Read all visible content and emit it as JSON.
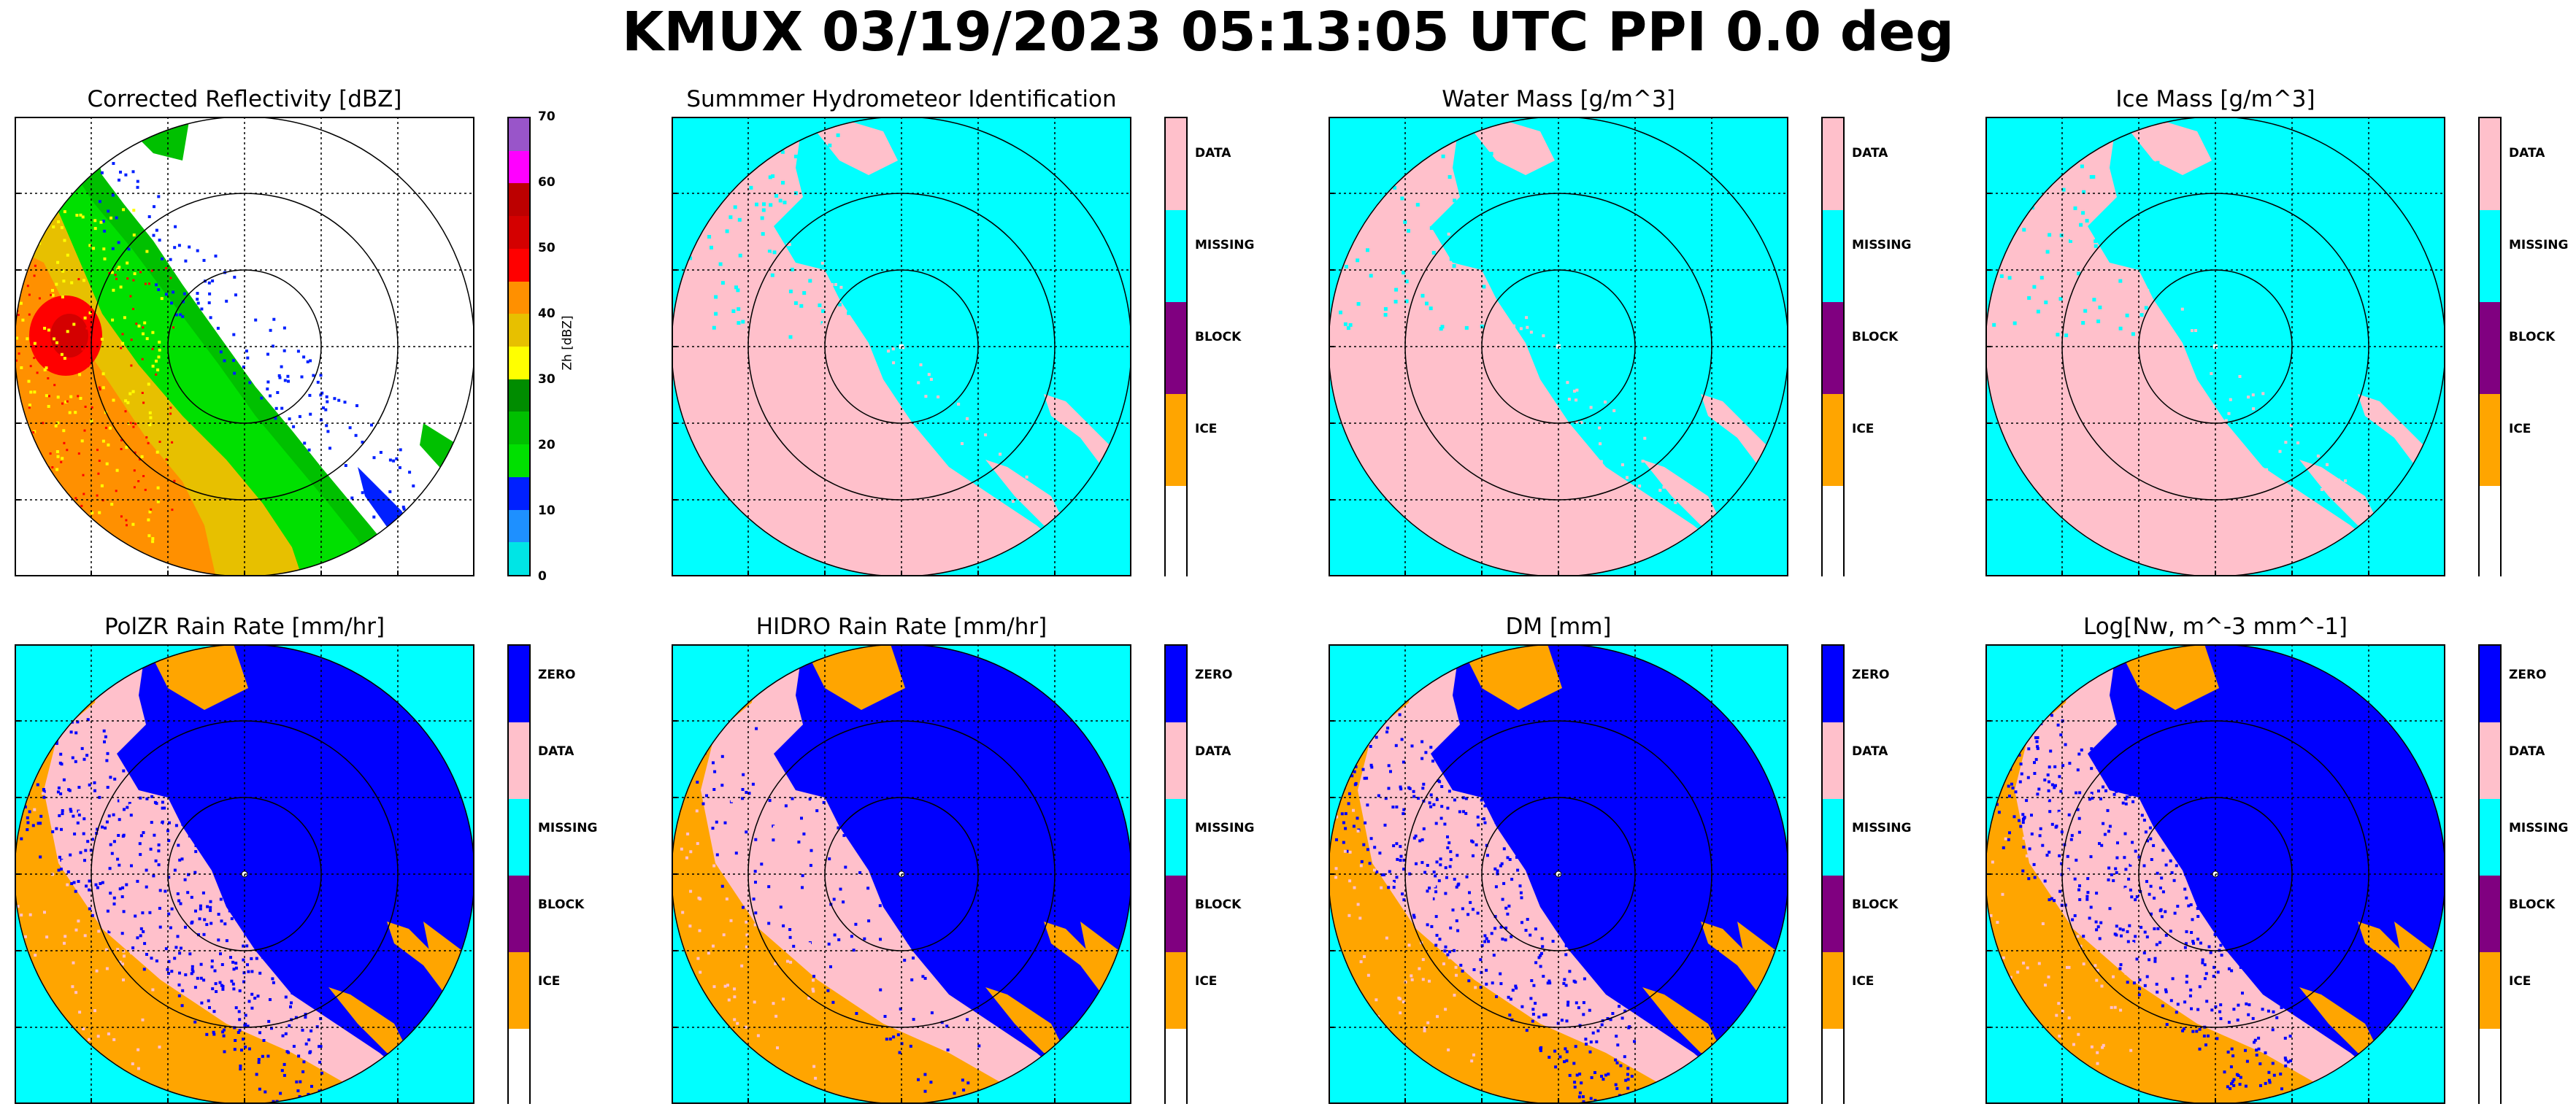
{
  "figure": {
    "title": "KMUX 03/19/2023 05:13:05 UTC PPI 0.0 deg"
  },
  "colors": {
    "ZERO": "#0000ff",
    "DATA": "#ffc0cb",
    "MISSING": "#00ffff",
    "BLOCK": "#800080",
    "ICE": "#ffa500",
    "none": "#ffffff"
  },
  "reflectivity_colorbar": {
    "axis_label": "Zh [dBZ]",
    "ticks": [
      "0",
      "10",
      "20",
      "30",
      "40",
      "50",
      "60",
      "70"
    ],
    "bins": [
      {
        "from": 0,
        "to": 5,
        "color": "#00e5e5"
      },
      {
        "from": 5,
        "to": 10,
        "color": "#1e90ff"
      },
      {
        "from": 10,
        "to": 15,
        "color": "#0020ff"
      },
      {
        "from": 15,
        "to": 20,
        "color": "#00e000"
      },
      {
        "from": 20,
        "to": 25,
        "color": "#00c000"
      },
      {
        "from": 25,
        "to": 30,
        "color": "#008c00"
      },
      {
        "from": 30,
        "to": 35,
        "color": "#ffff00"
      },
      {
        "from": 35,
        "to": 40,
        "color": "#e7c000"
      },
      {
        "from": 40,
        "to": 45,
        "color": "#ff9000"
      },
      {
        "from": 45,
        "to": 50,
        "color": "#ff0000"
      },
      {
        "from": 50,
        "to": 55,
        "color": "#d40000"
      },
      {
        "from": 55,
        "to": 60,
        "color": "#bc0000"
      },
      {
        "from": 60,
        "to": 65,
        "color": "#ff00ff"
      },
      {
        "from": 65,
        "to": 70,
        "color": "#9955c9"
      }
    ]
  },
  "chart_data": [
    {
      "type": "heatmap",
      "title": "Corrected Reflectivity [dBZ]",
      "field": "reflectivity",
      "colorbar": "reflectivity"
    },
    {
      "type": "heatmap",
      "title": "Summmer Hydrometeor Identification",
      "field": "category",
      "colorbar": [
        "DATA",
        "MISSING",
        "BLOCK",
        "ICE",
        ""
      ]
    },
    {
      "type": "heatmap",
      "title": "Water Mass [g/m^3]",
      "field": "category",
      "colorbar": [
        "DATA",
        "MISSING",
        "BLOCK",
        "ICE",
        ""
      ]
    },
    {
      "type": "heatmap",
      "title": "Ice Mass [g/m^3]",
      "field": "category",
      "colorbar": [
        "DATA",
        "MISSING",
        "BLOCK",
        "ICE",
        ""
      ]
    },
    {
      "type": "heatmap",
      "title": "PolZR Rain Rate [mm/hr]",
      "field": "rain",
      "colorbar": [
        "ZERO",
        "DATA",
        "MISSING",
        "BLOCK",
        "ICE",
        ""
      ]
    },
    {
      "type": "heatmap",
      "title": "HIDRO Rain Rate [mm/hr]",
      "field": "rain",
      "colorbar": [
        "ZERO",
        "DATA",
        "MISSING",
        "BLOCK",
        "ICE",
        ""
      ]
    },
    {
      "type": "heatmap",
      "title": "DM [mm]",
      "field": "rain",
      "colorbar": [
        "ZERO",
        "DATA",
        "MISSING",
        "BLOCK",
        "ICE",
        ""
      ]
    },
    {
      "type": "heatmap",
      "title": "Log[Nw, m^-3 mm^-1]",
      "field": "rain",
      "colorbar": [
        "ZERO",
        "DATA",
        "MISSING",
        "BLOCK",
        "ICE",
        ""
      ]
    }
  ]
}
